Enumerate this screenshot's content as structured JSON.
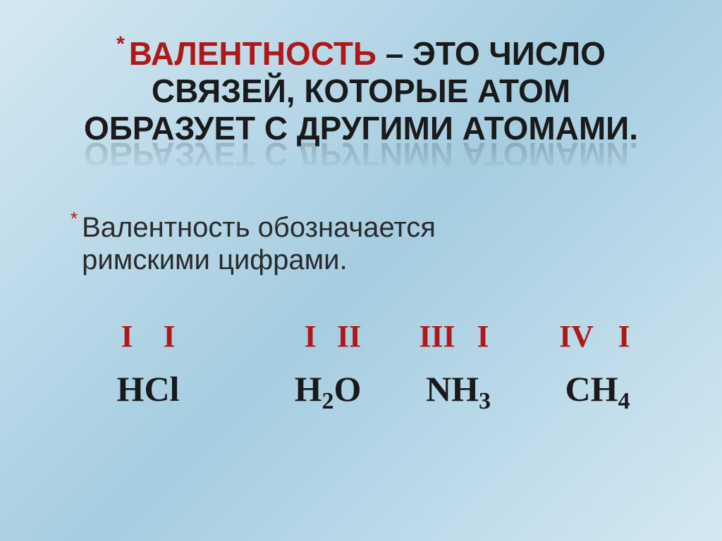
{
  "title": {
    "keyword": "Валентность",
    "rest1": " – это число",
    "line2": "связей, которые атом",
    "line3": "образует с другими атомами.",
    "reflect_last": "образует с другими атомами.",
    "keyword_color": "#b01818",
    "text_color": "#1a1a1a",
    "fontsize": 46
  },
  "subtitle": {
    "line1": "Валентность обозначается",
    "line2": "римскими цифрами.",
    "fontsize": 40,
    "color": "#2a2a2a",
    "star_color": "#b01818"
  },
  "roman": {
    "values": [
      "I",
      "I",
      "I",
      "II",
      "III",
      "I",
      "IV",
      "I"
    ],
    "color": "#b01818",
    "fontsize": 44,
    "font_family": "Times New Roman"
  },
  "formulas": {
    "items": [
      {
        "display": "HCl"
      },
      {
        "display_html": "H2O",
        "base1": "H",
        "sub1": "2",
        "base2": "O"
      },
      {
        "display_html": "NH3",
        "base1": "NH",
        "sub1": "3"
      },
      {
        "display_html": "CH4",
        "base1": "CH",
        "sub1": "4"
      }
    ],
    "color": "#1a1a1a",
    "fontsize": 50,
    "font_family": "Times New Roman"
  },
  "background": {
    "gradient_stops": [
      "#d5e8f0",
      "#b8d8e8",
      "#a5cde0",
      "#b8d8e8",
      "#d5e8f0"
    ]
  },
  "asterisk": "*"
}
